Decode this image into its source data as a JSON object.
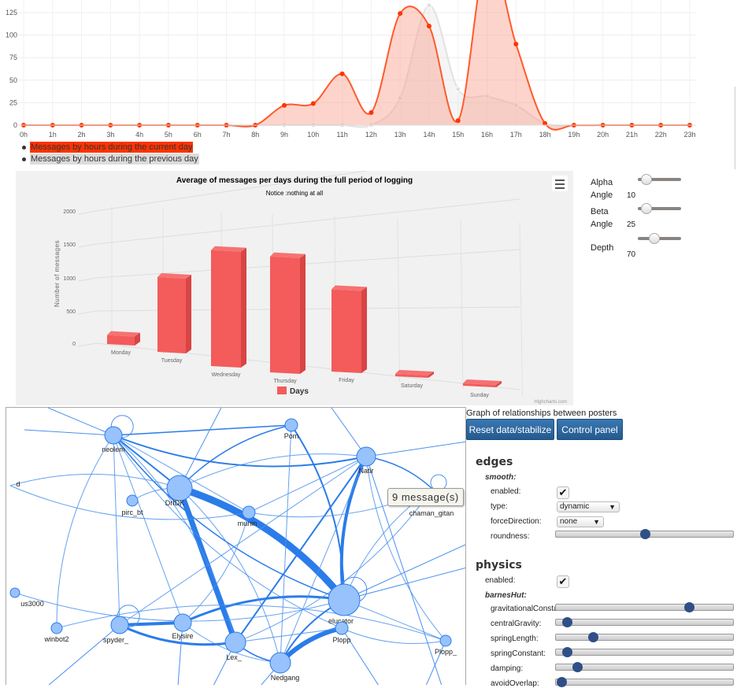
{
  "hours_chart": {
    "chart_data": {
      "type": "line",
      "categories": [
        "0h",
        "1h",
        "2h",
        "3h",
        "4h",
        "5h",
        "6h",
        "7h",
        "8h",
        "9h",
        "10h",
        "11h",
        "12h",
        "13h",
        "14h",
        "15h",
        "16h",
        "17h",
        "18h",
        "19h",
        "20h",
        "21h",
        "22h",
        "23h"
      ],
      "y_ticks": [
        "0",
        "25",
        "50",
        "75",
        "100",
        "125"
      ],
      "ylim": [
        0,
        140
      ],
      "series": [
        {
          "name": "Messages by hours during the current day",
          "color": "#ff4a1c",
          "values": [
            0,
            0,
            0,
            0,
            0,
            0,
            0,
            0,
            0,
            22,
            24,
            57,
            14,
            124,
            110,
            5,
            190,
            90,
            2,
            0,
            0,
            0,
            0,
            0
          ]
        },
        {
          "name": "Messages by hours during the previous day",
          "color": "#dddddd",
          "values": [
            0,
            0,
            0,
            0,
            0,
            0,
            0,
            0,
            0,
            0,
            0,
            0,
            0,
            30,
            133,
            40,
            32,
            22,
            2,
            0,
            0,
            0,
            0,
            0
          ]
        }
      ]
    }
  },
  "days_chart": {
    "chart_data": {
      "type": "bar",
      "title": "Average of messages per days during the full period of logging",
      "subtitle": "Notice :nothing at all",
      "ylabel": "Number of messages",
      "y_ticks": [
        "0",
        "500",
        "1000",
        "1500",
        "2000"
      ],
      "ylim": [
        0,
        2000
      ],
      "categories": [
        "Monday",
        "Tuesday",
        "Wednesday",
        "Thursday",
        "Friday",
        "Saturday",
        "Sunday"
      ],
      "series": [
        {
          "name": "Days",
          "color": "#f45b5b",
          "values": [
            120,
            1000,
            1550,
            1550,
            1100,
            10,
            10
          ]
        }
      ],
      "credits": "Highcharts.com"
    },
    "controls": [
      {
        "label": "Alpha Angle",
        "value": "10",
        "fraction": 0.1
      },
      {
        "label": "Beta Angle",
        "value": "25",
        "fraction": 0.1
      },
      {
        "label": "Depth",
        "value": "70",
        "fraction": 0.35
      }
    ]
  },
  "graph": {
    "nodes": [
      "neolem",
      "DrIDK",
      "pirc_bt",
      "Pom",
      "Natir",
      "munin",
      "chaman_gitan",
      "d",
      "us3000",
      "winbot2",
      "spyder_",
      "Elysire",
      "Lex_",
      "Nedgang",
      "elucator",
      "Plopp",
      "Plopp_"
    ],
    "tooltip": "9 message(s)"
  },
  "panel": {
    "title": "Graph of relationships between posters",
    "reset_label": "Reset data/stabilize",
    "control_label": "Control panel",
    "edges_heading": "edges",
    "smooth_label": "smooth:",
    "enabled_label": "enabled:",
    "type_label": "type:",
    "type_value": "dynamic",
    "force_label": "forceDirection:",
    "force_value": "none",
    "roundness_label": "roundness:",
    "roundness": 0.5,
    "physics_heading": "physics",
    "physics_enabled_label": "enabled:",
    "barnes_label": "barnesHut:",
    "sliders": [
      {
        "label": "gravitationalConstant:",
        "fraction": 0.75
      },
      {
        "label": "centralGravity:",
        "fraction": 0.06
      },
      {
        "label": "springLength:",
        "fraction": 0.21
      },
      {
        "label": "springConstant:",
        "fraction": 0.06
      },
      {
        "label": "damping:",
        "fraction": 0.12
      },
      {
        "label": "avoidOverlap:",
        "fraction": 0.03
      }
    ]
  }
}
